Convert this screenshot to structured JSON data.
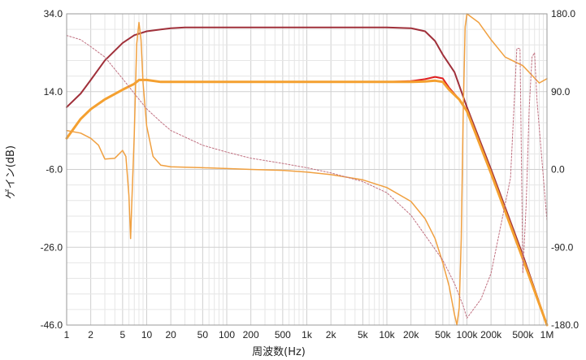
{
  "chart_data": {
    "type": "line",
    "xlabel": "周波数(Hz)",
    "ylabel": "ゲイン(dB)",
    "xscale": "log",
    "xlim": [
      1,
      1000000
    ],
    "ylim": [
      -46,
      34
    ],
    "y2lim": [
      -180,
      180
    ],
    "grid": true,
    "x_tick_labels": [
      {
        "v": 1,
        "t": "1"
      },
      {
        "v": 2,
        "t": "2"
      },
      {
        "v": 5,
        "t": "5"
      },
      {
        "v": 10,
        "t": "10"
      },
      {
        "v": 20,
        "t": "20"
      },
      {
        "v": 50,
        "t": "50"
      },
      {
        "v": 100,
        "t": "100"
      },
      {
        "v": 200,
        "t": "200"
      },
      {
        "v": 500,
        "t": "500"
      },
      {
        "v": 1000,
        "t": "1k"
      },
      {
        "v": 2000,
        "t": "2k"
      },
      {
        "v": 5000,
        "t": "5k"
      },
      {
        "v": 10000,
        "t": "10k"
      },
      {
        "v": 20000,
        "t": "20k"
      },
      {
        "v": 50000,
        "t": "50k"
      },
      {
        "v": 100000,
        "t": "100k"
      },
      {
        "v": 200000,
        "t": "200k"
      },
      {
        "v": 500000,
        "t": "500k"
      },
      {
        "v": 1000000,
        "t": "1M"
      }
    ],
    "y_tick_labels": [
      {
        "v": 34,
        "t": "34.0"
      },
      {
        "v": 14,
        "t": "14.0"
      },
      {
        "v": -6,
        "t": "-6.0"
      },
      {
        "v": -26,
        "t": "-26.0"
      },
      {
        "v": -46,
        "t": "-46.0"
      }
    ],
    "y2_tick_labels": [
      {
        "v": 180,
        "t": "180.0"
      },
      {
        "v": 90,
        "t": "90.0"
      },
      {
        "v": 0,
        "t": "0.0"
      },
      {
        "v": -90,
        "t": "-90.0"
      },
      {
        "v": -180,
        "t": "-180.0"
      }
    ],
    "series": [
      {
        "color": "#a0303a",
        "width": 2,
        "axis": "left",
        "points": [
          [
            1,
            10
          ],
          [
            1.5,
            13.5
          ],
          [
            2,
            17
          ],
          [
            3,
            22
          ],
          [
            5,
            26.5
          ],
          [
            7,
            28.5
          ],
          [
            10,
            29.5
          ],
          [
            15,
            30
          ],
          [
            20,
            30.3
          ],
          [
            30,
            30.5
          ],
          [
            50,
            30.5
          ],
          [
            100,
            30.5
          ],
          [
            1000,
            30.5
          ],
          [
            10000,
            30.5
          ],
          [
            20000,
            30.3
          ],
          [
            30000,
            29.5
          ],
          [
            40000,
            27
          ],
          [
            50000,
            23.5
          ],
          [
            70000,
            19
          ],
          [
            100000,
            10
          ],
          [
            200000,
            -6
          ],
          [
            500000,
            -28
          ],
          [
            1000000,
            -46
          ]
        ]
      },
      {
        "color": "#e02020",
        "width": 2,
        "axis": "left",
        "points": [
          [
            1,
            2
          ],
          [
            1.5,
            7
          ],
          [
            2,
            9.5
          ],
          [
            3,
            12
          ],
          [
            5,
            14.5
          ],
          [
            7,
            16
          ],
          [
            8,
            17
          ],
          [
            10,
            17
          ],
          [
            15,
            16.5
          ],
          [
            100,
            16.5
          ],
          [
            1000,
            16.5
          ],
          [
            10000,
            16.5
          ],
          [
            20000,
            16.7
          ],
          [
            30000,
            17.2
          ],
          [
            40000,
            17.8
          ],
          [
            50000,
            17.4
          ],
          [
            60000,
            15
          ],
          [
            80000,
            12
          ],
          [
            100000,
            9
          ],
          [
            200000,
            -7
          ],
          [
            500000,
            -29
          ],
          [
            1000000,
            -46
          ]
        ]
      },
      {
        "color": "#f4a030",
        "width": 3,
        "axis": "left",
        "points": [
          [
            1,
            2
          ],
          [
            1.5,
            7
          ],
          [
            2,
            9.5
          ],
          [
            3,
            12
          ],
          [
            5,
            14.5
          ],
          [
            7,
            16
          ],
          [
            8,
            17
          ],
          [
            10,
            17
          ],
          [
            15,
            16.5
          ],
          [
            100,
            16.5
          ],
          [
            1000,
            16.5
          ],
          [
            10000,
            16.5
          ],
          [
            20000,
            16.5
          ],
          [
            30000,
            16.6
          ],
          [
            40000,
            16.8
          ],
          [
            50000,
            16.5
          ],
          [
            60000,
            14.5
          ],
          [
            80000,
            12
          ],
          [
            100000,
            9
          ],
          [
            200000,
            -7
          ],
          [
            500000,
            -29
          ],
          [
            1000000,
            -46
          ]
        ]
      },
      {
        "color": "#f0a040",
        "width": 1.5,
        "axis": "right",
        "points": [
          [
            1,
            45
          ],
          [
            1.5,
            42
          ],
          [
            2,
            36
          ],
          [
            2.5,
            28
          ],
          [
            3,
            12
          ],
          [
            4,
            13
          ],
          [
            5,
            22
          ],
          [
            5.5,
            15
          ],
          [
            6,
            -30
          ],
          [
            6.3,
            -80
          ],
          [
            6.5,
            -40
          ],
          [
            7,
            40
          ],
          [
            7.5,
            145
          ],
          [
            8,
            170
          ],
          [
            8.5,
            150
          ],
          [
            9,
            100
          ],
          [
            10,
            50
          ],
          [
            12,
            15
          ],
          [
            15,
            5
          ],
          [
            20,
            3
          ],
          [
            50,
            2
          ],
          [
            100,
            1
          ],
          [
            200,
            0
          ],
          [
            500,
            -1
          ],
          [
            1000,
            -3
          ],
          [
            2000,
            -6
          ],
          [
            5000,
            -12
          ],
          [
            10000,
            -21
          ],
          [
            20000,
            -37
          ],
          [
            30000,
            -57
          ],
          [
            40000,
            -80
          ],
          [
            50000,
            -108
          ],
          [
            60000,
            -135
          ],
          [
            70000,
            -168
          ],
          [
            75000,
            -180
          ],
          [
            80000,
            -160
          ],
          [
            85000,
            -80
          ],
          [
            90000,
            70
          ],
          [
            95000,
            165
          ],
          [
            100000,
            180
          ],
          [
            140000,
            170
          ],
          [
            200000,
            150
          ],
          [
            300000,
            130
          ],
          [
            500000,
            120
          ],
          [
            800000,
            100
          ],
          [
            1000000,
            105
          ]
        ]
      },
      {
        "color": "#c07080",
        "width": 1,
        "axis": "right",
        "dash": "2,2",
        "points": [
          [
            1,
            155
          ],
          [
            1.5,
            150
          ],
          [
            2,
            142
          ],
          [
            3,
            130
          ],
          [
            5,
            105
          ],
          [
            7,
            88
          ],
          [
            10,
            70
          ],
          [
            15,
            55
          ],
          [
            20,
            45
          ],
          [
            50,
            28
          ],
          [
            100,
            20
          ],
          [
            200,
            13
          ],
          [
            500,
            7
          ],
          [
            1000,
            2
          ],
          [
            2000,
            -4
          ],
          [
            5000,
            -14
          ],
          [
            10000,
            -27
          ],
          [
            20000,
            -53
          ],
          [
            50000,
            -105
          ],
          [
            70000,
            -132
          ],
          [
            90000,
            -158
          ],
          [
            100000,
            -172
          ],
          [
            150000,
            -150
          ],
          [
            200000,
            -120
          ],
          [
            350000,
            -10
          ],
          [
            420000,
            140
          ],
          [
            460000,
            140
          ],
          [
            500000,
            -120
          ],
          [
            550000,
            -40
          ],
          [
            600000,
            70
          ],
          [
            650000,
            130
          ],
          [
            700000,
            135
          ],
          [
            750000,
            80
          ],
          [
            1000000,
            -60
          ]
        ]
      }
    ]
  }
}
